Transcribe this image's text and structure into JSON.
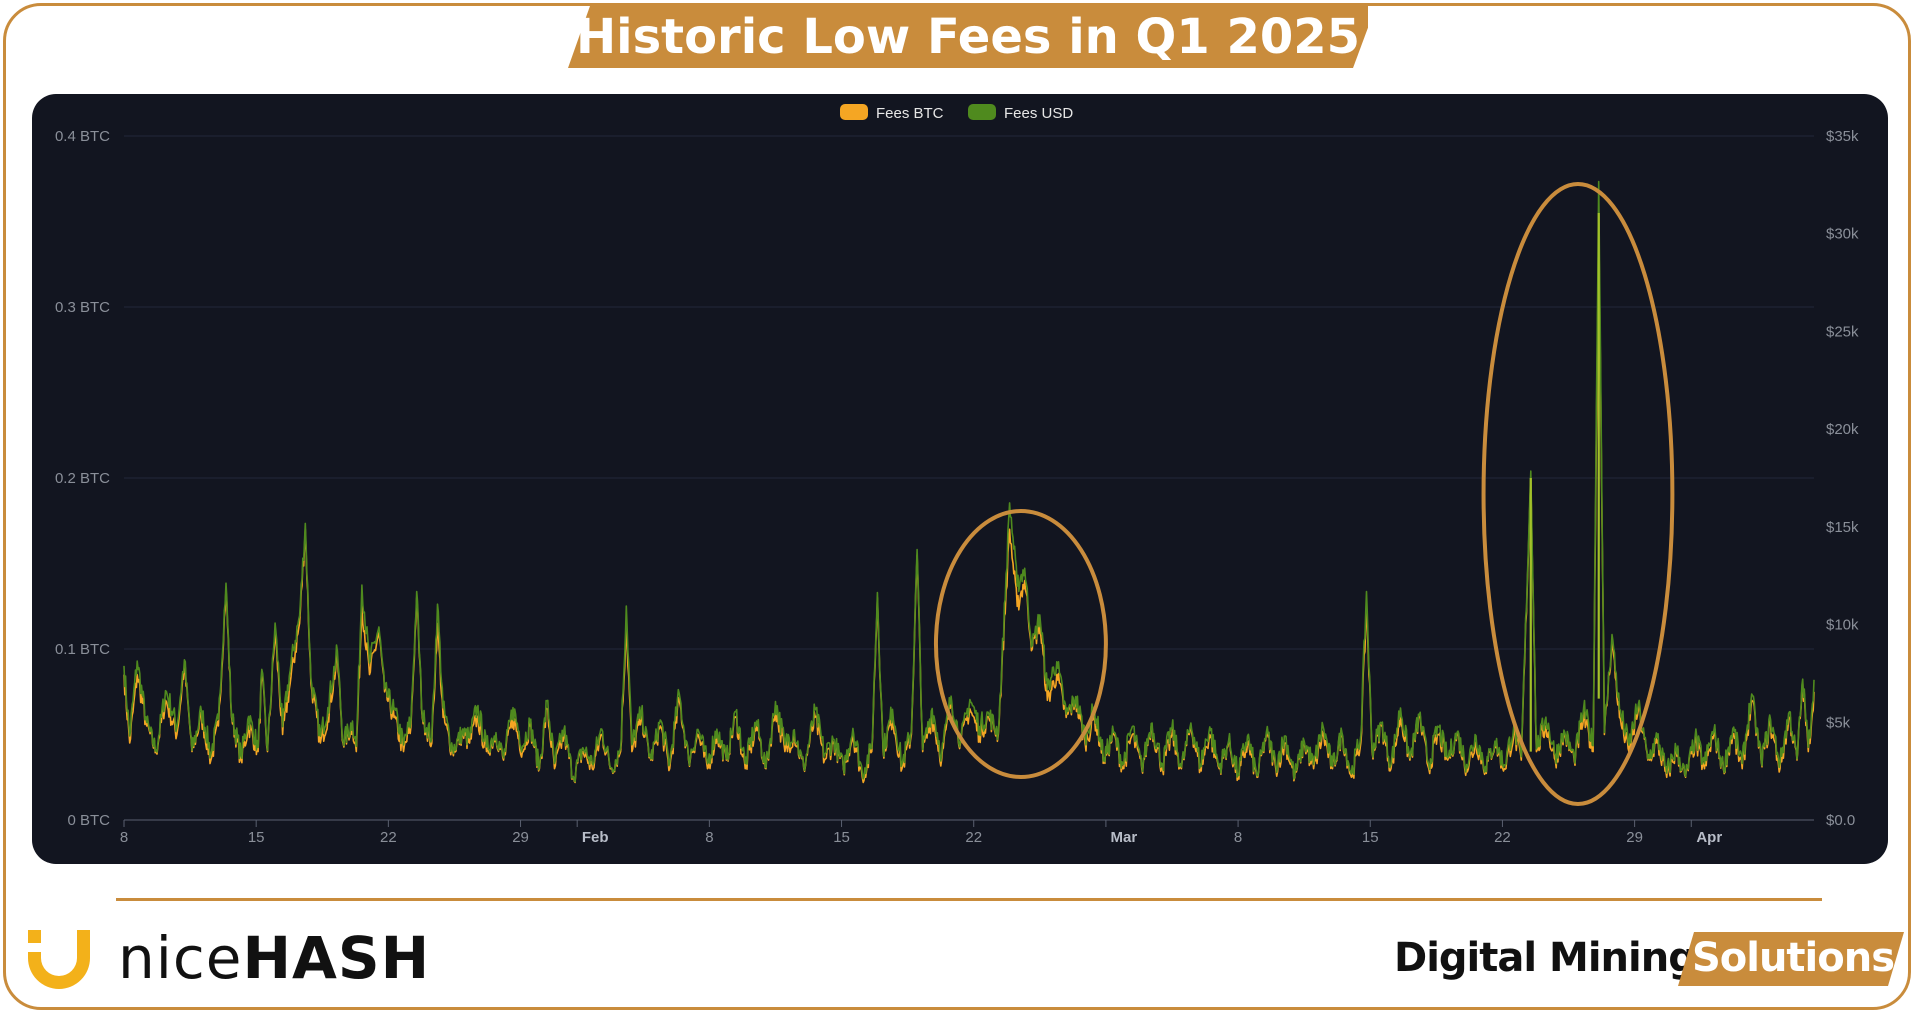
{
  "title": "Historic Low Fees in Q1 2025",
  "colors": {
    "brand": "#c98c3c",
    "panel_bg": "#121520",
    "fees_btc": "#f5a623",
    "fees_usd": "#4f8a1e",
    "spike_usd": "#a4c12a",
    "axis_text": "#8a8f99"
  },
  "logo": {
    "icon": "nicehash-logo-icon",
    "text_light": "nice",
    "text_bold": "HASH"
  },
  "brand_right": {
    "digital": "Digital Mining",
    "solutions": "Solutions"
  },
  "chart_data": {
    "type": "line",
    "title": "",
    "legend": [
      {
        "name": "Fees BTC",
        "color": "#f5a623"
      },
      {
        "name": "Fees USD",
        "color": "#4f8a1e"
      }
    ],
    "legend_position": "top-center",
    "y_left": {
      "ticks": [
        "0 BTC",
        "0.1 BTC",
        "0.2 BTC",
        "0.3 BTC",
        "0.4 BTC"
      ],
      "range": [
        0,
        0.4
      ],
      "unit": "BTC"
    },
    "y_right": {
      "ticks": [
        "$0.0",
        "$5k",
        "$10k",
        "$15k",
        "$20k",
        "$25k",
        "$30k",
        "$35k"
      ],
      "range": [
        0,
        35000
      ],
      "unit": "USD"
    },
    "x_ticks": [
      {
        "label": "8",
        "day": 0
      },
      {
        "label": "15",
        "day": 7
      },
      {
        "label": "22",
        "day": 14
      },
      {
        "label": "29",
        "day": 21
      },
      {
        "label": "Feb",
        "day": 24,
        "bold": true
      },
      {
        "label": "8",
        "day": 31
      },
      {
        "label": "15",
        "day": 38
      },
      {
        "label": "22",
        "day": 45
      },
      {
        "label": "Mar",
        "day": 52,
        "bold": true
      },
      {
        "label": "8",
        "day": 59
      },
      {
        "label": "15",
        "day": 66
      },
      {
        "label": "22",
        "day": 73
      },
      {
        "label": "29",
        "day": 80
      },
      {
        "label": "Apr",
        "day": 83,
        "bold": true
      }
    ],
    "x_range_days": [
      0,
      89.5
    ],
    "x_start_date": "2025-01-08",
    "grid": true,
    "series_btc_anchors": [
      [
        0.0,
        0.085
      ],
      [
        0.3,
        0.045
      ],
      [
        0.7,
        0.085
      ],
      [
        1.2,
        0.055
      ],
      [
        1.7,
        0.04
      ],
      [
        2.2,
        0.07
      ],
      [
        2.8,
        0.05
      ],
      [
        3.2,
        0.09
      ],
      [
        3.6,
        0.04
      ],
      [
        4.1,
        0.06
      ],
      [
        4.6,
        0.035
      ],
      [
        5.0,
        0.055
      ],
      [
        5.4,
        0.135
      ],
      [
        5.7,
        0.06
      ],
      [
        6.2,
        0.035
      ],
      [
        6.6,
        0.055
      ],
      [
        7.1,
        0.04
      ],
      [
        7.3,
        0.085
      ],
      [
        7.6,
        0.04
      ],
      [
        8.0,
        0.11
      ],
      [
        8.4,
        0.05
      ],
      [
        8.8,
        0.08
      ],
      [
        9.3,
        0.115
      ],
      [
        9.6,
        0.17
      ],
      [
        9.9,
        0.08
      ],
      [
        10.4,
        0.045
      ],
      [
        10.8,
        0.06
      ],
      [
        11.3,
        0.095
      ],
      [
        11.6,
        0.045
      ],
      [
        12.1,
        0.055
      ],
      [
        12.3,
        0.04
      ],
      [
        12.6,
        0.125
      ],
      [
        13.0,
        0.085
      ],
      [
        13.5,
        0.11
      ],
      [
        13.8,
        0.075
      ],
      [
        14.3,
        0.06
      ],
      [
        14.8,
        0.04
      ],
      [
        15.2,
        0.055
      ],
      [
        15.5,
        0.13
      ],
      [
        15.8,
        0.06
      ],
      [
        16.3,
        0.045
      ],
      [
        16.6,
        0.115
      ],
      [
        16.9,
        0.06
      ],
      [
        17.4,
        0.04
      ],
      [
        17.9,
        0.05
      ],
      [
        18.3,
        0.045
      ],
      [
        18.7,
        0.06
      ],
      [
        19.2,
        0.04
      ],
      [
        19.7,
        0.05
      ],
      [
        20.1,
        0.035
      ],
      [
        20.6,
        0.06
      ],
      [
        21.1,
        0.04
      ],
      [
        21.5,
        0.055
      ],
      [
        22.0,
        0.03
      ],
      [
        22.4,
        0.065
      ],
      [
        22.8,
        0.03
      ],
      [
        23.3,
        0.05
      ],
      [
        23.8,
        0.025
      ],
      [
        24.3,
        0.04
      ],
      [
        24.8,
        0.03
      ],
      [
        25.3,
        0.05
      ],
      [
        25.8,
        0.03
      ],
      [
        26.3,
        0.04
      ],
      [
        26.6,
        0.115
      ],
      [
        26.9,
        0.04
      ],
      [
        27.4,
        0.06
      ],
      [
        27.9,
        0.035
      ],
      [
        28.4,
        0.055
      ],
      [
        28.9,
        0.03
      ],
      [
        29.4,
        0.07
      ],
      [
        29.9,
        0.035
      ],
      [
        30.4,
        0.05
      ],
      [
        30.9,
        0.03
      ],
      [
        31.4,
        0.05
      ],
      [
        31.9,
        0.035
      ],
      [
        32.4,
        0.06
      ],
      [
        32.9,
        0.03
      ],
      [
        33.5,
        0.055
      ],
      [
        34.0,
        0.03
      ],
      [
        34.5,
        0.065
      ],
      [
        35.0,
        0.04
      ],
      [
        35.5,
        0.05
      ],
      [
        36.0,
        0.03
      ],
      [
        36.6,
        0.06
      ],
      [
        37.1,
        0.035
      ],
      [
        37.6,
        0.045
      ],
      [
        38.1,
        0.03
      ],
      [
        38.6,
        0.05
      ],
      [
        39.1,
        0.025
      ],
      [
        39.6,
        0.04
      ],
      [
        39.9,
        0.13
      ],
      [
        40.2,
        0.04
      ],
      [
        40.7,
        0.06
      ],
      [
        41.2,
        0.03
      ],
      [
        41.7,
        0.05
      ],
      [
        42.0,
        0.155
      ],
      [
        42.3,
        0.04
      ],
      [
        42.8,
        0.06
      ],
      [
        43.3,
        0.035
      ],
      [
        43.8,
        0.07
      ],
      [
        44.3,
        0.045
      ],
      [
        44.8,
        0.065
      ],
      [
        45.3,
        0.05
      ],
      [
        45.8,
        0.06
      ],
      [
        46.3,
        0.05
      ],
      [
        46.9,
        0.17
      ],
      [
        47.3,
        0.125
      ],
      [
        47.7,
        0.14
      ],
      [
        48.1,
        0.1
      ],
      [
        48.5,
        0.115
      ],
      [
        48.9,
        0.07
      ],
      [
        49.4,
        0.085
      ],
      [
        49.9,
        0.06
      ],
      [
        50.4,
        0.07
      ],
      [
        50.9,
        0.045
      ],
      [
        51.4,
        0.06
      ],
      [
        51.9,
        0.035
      ],
      [
        52.4,
        0.05
      ],
      [
        52.9,
        0.03
      ],
      [
        53.4,
        0.05
      ],
      [
        53.9,
        0.03
      ],
      [
        54.4,
        0.055
      ],
      [
        55.0,
        0.03
      ],
      [
        55.5,
        0.05
      ],
      [
        56.0,
        0.03
      ],
      [
        56.5,
        0.055
      ],
      [
        57.0,
        0.03
      ],
      [
        57.5,
        0.05
      ],
      [
        58.0,
        0.03
      ],
      [
        58.5,
        0.045
      ],
      [
        59.0,
        0.025
      ],
      [
        59.5,
        0.045
      ],
      [
        60.0,
        0.025
      ],
      [
        60.5,
        0.05
      ],
      [
        61.0,
        0.03
      ],
      [
        61.5,
        0.045
      ],
      [
        62.0,
        0.025
      ],
      [
        62.5,
        0.045
      ],
      [
        63.0,
        0.03
      ],
      [
        63.5,
        0.05
      ],
      [
        64.0,
        0.03
      ],
      [
        64.5,
        0.05
      ],
      [
        65.0,
        0.025
      ],
      [
        65.5,
        0.045
      ],
      [
        65.8,
        0.125
      ],
      [
        66.1,
        0.04
      ],
      [
        66.6,
        0.055
      ],
      [
        67.1,
        0.03
      ],
      [
        67.6,
        0.06
      ],
      [
        68.1,
        0.035
      ],
      [
        68.6,
        0.06
      ],
      [
        69.1,
        0.03
      ],
      [
        69.6,
        0.05
      ],
      [
        70.1,
        0.035
      ],
      [
        70.6,
        0.05
      ],
      [
        71.1,
        0.03
      ],
      [
        71.6,
        0.045
      ],
      [
        72.1,
        0.03
      ],
      [
        72.6,
        0.045
      ],
      [
        73.1,
        0.03
      ],
      [
        73.6,
        0.05
      ],
      [
        74.0,
        0.035
      ],
      [
        74.5,
        0.2
      ],
      [
        74.8,
        0.04
      ],
      [
        75.3,
        0.055
      ],
      [
        75.8,
        0.035
      ],
      [
        76.3,
        0.05
      ],
      [
        76.8,
        0.035
      ],
      [
        77.3,
        0.06
      ],
      [
        77.8,
        0.04
      ],
      [
        78.1,
        0.355
      ],
      [
        78.4,
        0.05
      ],
      [
        78.8,
        0.105
      ],
      [
        79.2,
        0.06
      ],
      [
        79.7,
        0.04
      ],
      [
        80.2,
        0.065
      ],
      [
        80.7,
        0.035
      ],
      [
        81.2,
        0.045
      ],
      [
        81.7,
        0.025
      ],
      [
        82.2,
        0.04
      ],
      [
        82.7,
        0.025
      ],
      [
        83.2,
        0.045
      ],
      [
        83.7,
        0.03
      ],
      [
        84.2,
        0.05
      ],
      [
        84.7,
        0.03
      ],
      [
        85.2,
        0.05
      ],
      [
        85.7,
        0.03
      ],
      [
        86.2,
        0.07
      ],
      [
        86.7,
        0.035
      ],
      [
        87.2,
        0.055
      ],
      [
        87.7,
        0.03
      ],
      [
        88.2,
        0.06
      ],
      [
        88.6,
        0.035
      ],
      [
        88.9,
        0.08
      ],
      [
        89.2,
        0.04
      ],
      [
        89.5,
        0.075
      ]
    ],
    "annotations": [
      {
        "type": "ellipse",
        "around_days": [
          43,
          52
        ]
      },
      {
        "type": "ellipse",
        "around_days": [
          72,
          82
        ]
      }
    ]
  }
}
